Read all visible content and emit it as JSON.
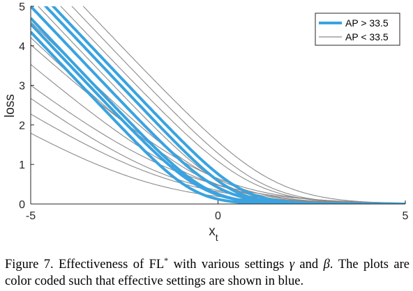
{
  "chart_data": {
    "type": "line",
    "xlabel": "x",
    "xlabel_subscript": "t",
    "ylabel": "loss",
    "xlim": [
      -5,
      5
    ],
    "ylim": [
      0,
      5
    ],
    "xticks": [
      "-5",
      "0",
      "5"
    ],
    "yticks": [
      "0",
      "1",
      "2",
      "3",
      "4",
      "5"
    ],
    "grid": false,
    "legend_position": "top-right",
    "series": [
      {
        "name": "AP > 33.5",
        "color": "#3aa3e0",
        "emphasis": "thick",
        "curves": [
          {
            "slope": 1.0,
            "intercept": 5.6,
            "curvature": 0.55
          },
          {
            "slope": 1.0,
            "intercept": 5.4,
            "curvature": 0.5
          },
          {
            "slope": 1.0,
            "intercept": 5.0,
            "curvature": 0.6
          },
          {
            "slope": 1.0,
            "intercept": 4.7,
            "curvature": 0.55
          },
          {
            "slope": 1.0,
            "intercept": 4.55,
            "curvature": 0.6
          },
          {
            "slope": 1.0,
            "intercept": 4.35,
            "curvature": 0.5
          }
        ]
      },
      {
        "name": "AP < 33.5",
        "color": "#8a8a8a",
        "emphasis": "thin",
        "curves": [
          {
            "slope": 1.0,
            "intercept": 6.4,
            "curvature": 0.9
          },
          {
            "slope": 1.0,
            "intercept": 6.1,
            "curvature": 0.8
          },
          {
            "slope": 1.0,
            "intercept": 5.8,
            "curvature": 0.85
          },
          {
            "slope": 1.0,
            "intercept": 5.2,
            "curvature": 0.7
          },
          {
            "slope": 0.95,
            "intercept": 4.6,
            "curvature": 1.0
          },
          {
            "slope": 0.9,
            "intercept": 4.2,
            "curvature": 0.9
          },
          {
            "slope": 0.85,
            "intercept": 4.0,
            "curvature": 1.1
          },
          {
            "slope": 0.8,
            "intercept": 3.5,
            "curvature": 1.0
          },
          {
            "slope": 0.75,
            "intercept": 2.9,
            "curvature": 1.2
          },
          {
            "slope": 0.7,
            "intercept": 2.6,
            "curvature": 1.0
          },
          {
            "slope": 0.6,
            "intercept": 2.2,
            "curvature": 0.9
          },
          {
            "slope": 0.55,
            "intercept": 1.7,
            "curvature": 0.8
          }
        ]
      }
    ]
  },
  "caption": {
    "prefix": "Figure 7. Effectiveness of FL",
    "superscript": "*",
    "middle": " with various settings ",
    "gamma": "γ",
    "and": " and ",
    "beta": "β",
    "suffix": ". The plots are color coded such that effective settings are shown in blue."
  }
}
